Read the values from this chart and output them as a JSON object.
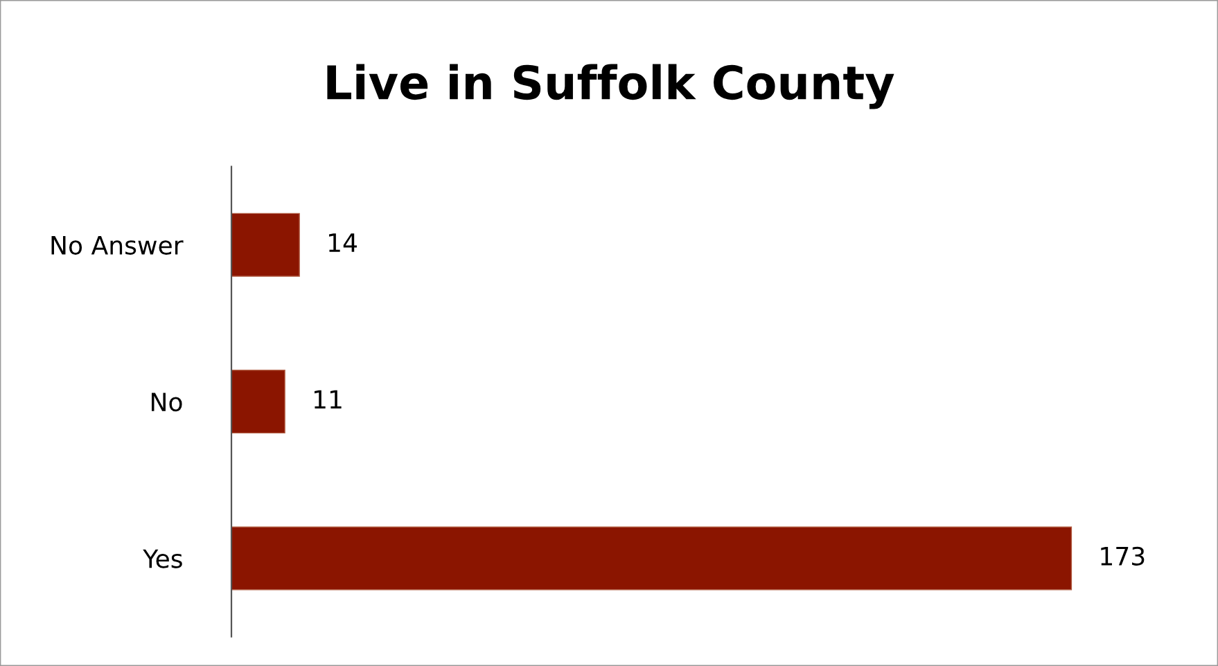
{
  "chart_data": {
    "type": "bar",
    "orientation": "horizontal",
    "title": "Live in Suffolk County",
    "categories": [
      "No Answer",
      "No",
      "Yes"
    ],
    "values": [
      14,
      11,
      173
    ],
    "color": "#8b1500",
    "tick_labels": "y",
    "data_labels": true,
    "grid": false,
    "legend": false
  }
}
